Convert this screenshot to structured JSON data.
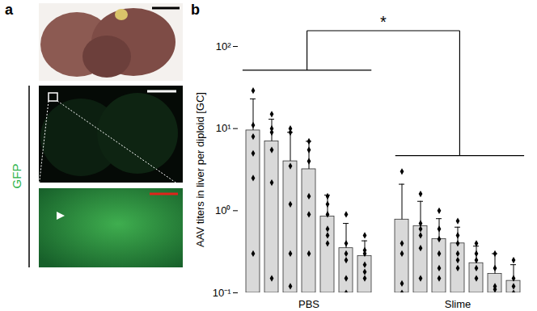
{
  "panel_a": {
    "label": "a",
    "channel_label": "GFP"
  },
  "chart_data": {
    "type": "bar",
    "panel_label": "b",
    "y_label": "AAV titers in liver per diploid [GC]",
    "log": "y",
    "ylim": [
      0.1,
      100
    ],
    "yticks": [
      {
        "value": 0.1,
        "label": "10⁻¹"
      },
      {
        "value": 1,
        "label": "10⁰"
      },
      {
        "value": 10,
        "label": "10¹"
      },
      {
        "value": 100,
        "label": "10²"
      }
    ],
    "color": "#d9d9d9",
    "series": [
      {
        "name": "PBS",
        "values": [
          9.5,
          7,
          4,
          3.2,
          0.85,
          0.35,
          0.28
        ],
        "errors": [
          13.5,
          6,
          5,
          3.8,
          0.7,
          0.35,
          0.15
        ],
        "points": [
          [
            29,
            11,
            8,
            5,
            2.5,
            0.3
          ],
          [
            15,
            10,
            9,
            5.5,
            2.2,
            0.15
          ],
          [
            10,
            9,
            3.5,
            1.2,
            0.3,
            0.12
          ],
          [
            7,
            5.5,
            4,
            1.5,
            0.9,
            0.3
          ],
          [
            1.5,
            1.2,
            0.9,
            0.6,
            0.5,
            0.4
          ],
          [
            0.9,
            0.4,
            0.3,
            0.25,
            0.15,
            0.1
          ],
          [
            0.5,
            0.33,
            0.3,
            0.22,
            0.18,
            0.15
          ]
        ]
      },
      {
        "name": "Slime",
        "values": [
          0.78,
          0.65,
          0.45,
          0.4,
          0.23,
          0.17,
          0.14
        ],
        "errors": [
          1.32,
          0.65,
          0.35,
          0.23,
          0.14,
          0.13,
          0.08
        ],
        "points": [
          [
            3.0,
            0.4,
            0.3,
            0.13,
            0.1
          ],
          [
            1.6,
            0.7,
            0.6,
            0.5,
            0.35,
            0.15
          ],
          [
            1.0,
            0.6,
            0.45,
            0.3,
            0.2,
            0.15
          ],
          [
            0.75,
            0.5,
            0.4,
            0.3,
            0.25,
            0.2
          ],
          [
            0.4,
            0.3,
            0.25,
            0.2,
            0.15
          ],
          [
            0.3,
            0.2,
            0.12,
            0.11
          ],
          [
            0.25,
            0.15,
            0.12,
            0.1,
            0.08
          ]
        ]
      }
    ],
    "annotations": [
      {
        "text": "*"
      }
    ]
  }
}
